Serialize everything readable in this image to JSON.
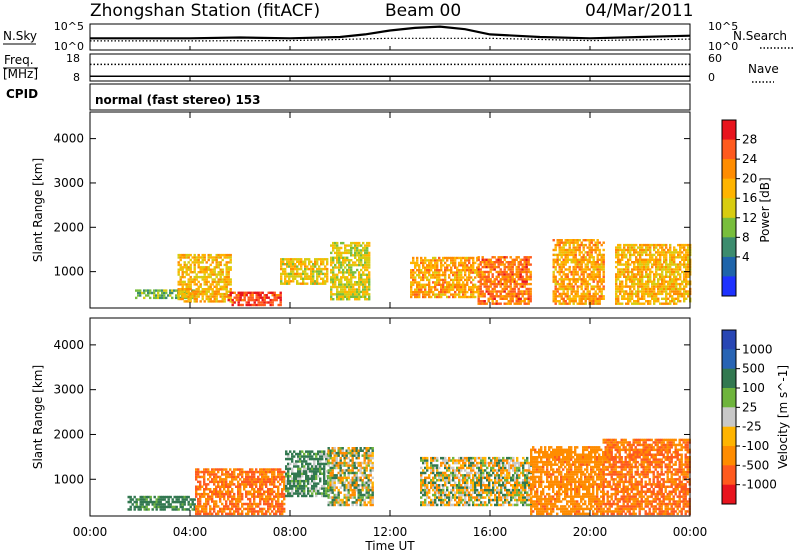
{
  "header": {
    "station": "Zhongshan Station (fitACF)",
    "beam": "Beam 00",
    "date": "04/Mar/2011"
  },
  "noise_panel": {
    "left_label": "N.Sky",
    "left_ticks": [
      "10^5",
      "10^0"
    ],
    "right_label": "N.Search",
    "right_ticks": [
      "10^5",
      "10^0"
    ]
  },
  "freq_panel": {
    "left_label_1": "Freq.",
    "left_label_2": "[MHz]",
    "left_ticks": [
      "18",
      "8"
    ],
    "right_label": "Nave",
    "right_ticks": [
      "60",
      "0"
    ]
  },
  "cpid": {
    "label": "CPID",
    "text": "normal (fast stereo) 153"
  },
  "x_axis": {
    "title": "Time UT",
    "ticks": [
      "00:00",
      "04:00",
      "08:00",
      "12:00",
      "16:00",
      "20:00",
      "00:00"
    ]
  },
  "panels": {
    "power": {
      "ylabel": "Slant Range [km]",
      "yticks": [
        "1000",
        "2000",
        "3000",
        "4000"
      ]
    },
    "velocity": {
      "ylabel": "Slant Range [km]",
      "yticks": [
        "1000",
        "2000",
        "3000",
        "4000"
      ]
    }
  },
  "colorbars": {
    "power": {
      "label": "Power [dB]",
      "ticks": [
        "28",
        "24",
        "20",
        "16",
        "12",
        "8",
        "4"
      ],
      "colors": [
        "#e8141e",
        "#ff5a1e",
        "#ff8c00",
        "#ffb400",
        "#d8cc10",
        "#78be3c",
        "#3c8c6e",
        "#1e64aa",
        "#1e32ff"
      ]
    },
    "velocity": {
      "label": "Velocity [m s^-1]",
      "ticks": [
        "1000",
        "500",
        "100",
        "25",
        "-25",
        "-100",
        "-500",
        "-1000"
      ],
      "colors": [
        "#2846b4",
        "#2864b4",
        "#327850",
        "#6eb43c",
        "#c8c8c8",
        "#ffb400",
        "#ff8c00",
        "#ff5a1e",
        "#e8141e"
      ]
    }
  },
  "chart_data": [
    {
      "type": "line",
      "title": "Zhongshan Station (fitACF)",
      "xlabel": "Time UT",
      "x_range_hours": [
        0,
        24
      ],
      "series": [
        {
          "name": "N.Sky",
          "x_hours": [
            0,
            2,
            4,
            6,
            8,
            10,
            11,
            12,
            13,
            14,
            15,
            16,
            17,
            18,
            20,
            22,
            24
          ],
          "values_relative": [
            0.45,
            0.45,
            0.45,
            0.48,
            0.45,
            0.5,
            0.6,
            0.75,
            0.85,
            0.9,
            0.8,
            0.6,
            0.55,
            0.5,
            0.45,
            0.5,
            0.55
          ]
        },
        {
          "name": "N.Search",
          "x_hours": [
            0,
            4,
            8,
            12,
            16,
            20,
            24
          ],
          "values_relative": [
            0.35,
            0.35,
            0.36,
            0.45,
            0.45,
            0.36,
            0.42
          ]
        }
      ]
    },
    {
      "type": "scatter",
      "title": "Freq. / Nave",
      "series": [
        {
          "name": "Freq. [MHz]",
          "approx_value": 12,
          "ylim": [
            8,
            18
          ]
        },
        {
          "name": "Nave",
          "approx_value": 28,
          "ylim": [
            0,
            60
          ]
        }
      ]
    },
    {
      "type": "heatmap",
      "title": "Power [dB]",
      "xlabel": "Time UT",
      "ylabel": "Slant Range [km]",
      "x_range_hours": [
        0,
        24
      ],
      "ylim": [
        180,
        4600
      ],
      "colorbar_ticks": [
        4,
        8,
        12,
        16,
        20,
        24,
        28
      ],
      "regions": [
        {
          "t0": 1.8,
          "t1": 4.2,
          "r0": 380,
          "r1": 560,
          "value": 10
        },
        {
          "t0": 3.5,
          "t1": 5.6,
          "r0": 300,
          "r1": 1350,
          "value": 18
        },
        {
          "t0": 5.5,
          "t1": 7.6,
          "r0": 220,
          "r1": 500,
          "value": 28
        },
        {
          "t0": 7.6,
          "t1": 9.5,
          "r0": 700,
          "r1": 1300,
          "value": 16
        },
        {
          "t0": 9.6,
          "t1": 11.2,
          "r0": 350,
          "r1": 1650,
          "value": 14
        },
        {
          "t0": 12.8,
          "t1": 15.5,
          "r0": 400,
          "r1": 1300,
          "value": 20
        },
        {
          "t0": 15.5,
          "t1": 17.6,
          "r0": 250,
          "r1": 1300,
          "value": 24
        },
        {
          "t0": 18.5,
          "t1": 20.5,
          "r0": 250,
          "r1": 1700,
          "value": 20
        },
        {
          "t0": 21.0,
          "t1": 24.0,
          "r0": 250,
          "r1": 1600,
          "value": 18
        }
      ]
    },
    {
      "type": "heatmap",
      "title": "Velocity [m s^-1]",
      "xlabel": "Time UT",
      "ylabel": "Slant Range [km]",
      "x_range_hours": [
        0,
        24
      ],
      "ylim": [
        180,
        4600
      ],
      "colorbar_ticks": [
        -1000,
        -500,
        -100,
        -25,
        25,
        100,
        500,
        1000
      ],
      "regions": [
        {
          "t0": 1.5,
          "t1": 4.2,
          "r0": 300,
          "r1": 600,
          "value": 150
        },
        {
          "t0": 4.2,
          "t1": 7.8,
          "r0": 200,
          "r1": 1200,
          "value": -300
        },
        {
          "t0": 7.8,
          "t1": 9.5,
          "r0": 600,
          "r1": 1600,
          "value": 100
        },
        {
          "t0": 9.5,
          "t1": 11.3,
          "r0": 400,
          "r1": 1700,
          "value": 0
        },
        {
          "t0": 13.2,
          "t1": 17.6,
          "r0": 400,
          "r1": 1450,
          "value": 0
        },
        {
          "t0": 17.6,
          "t1": 20.5,
          "r0": 200,
          "r1": 1700,
          "value": -200
        },
        {
          "t0": 20.5,
          "t1": 24.0,
          "r0": 200,
          "r1": 1900,
          "value": -300
        }
      ]
    }
  ]
}
